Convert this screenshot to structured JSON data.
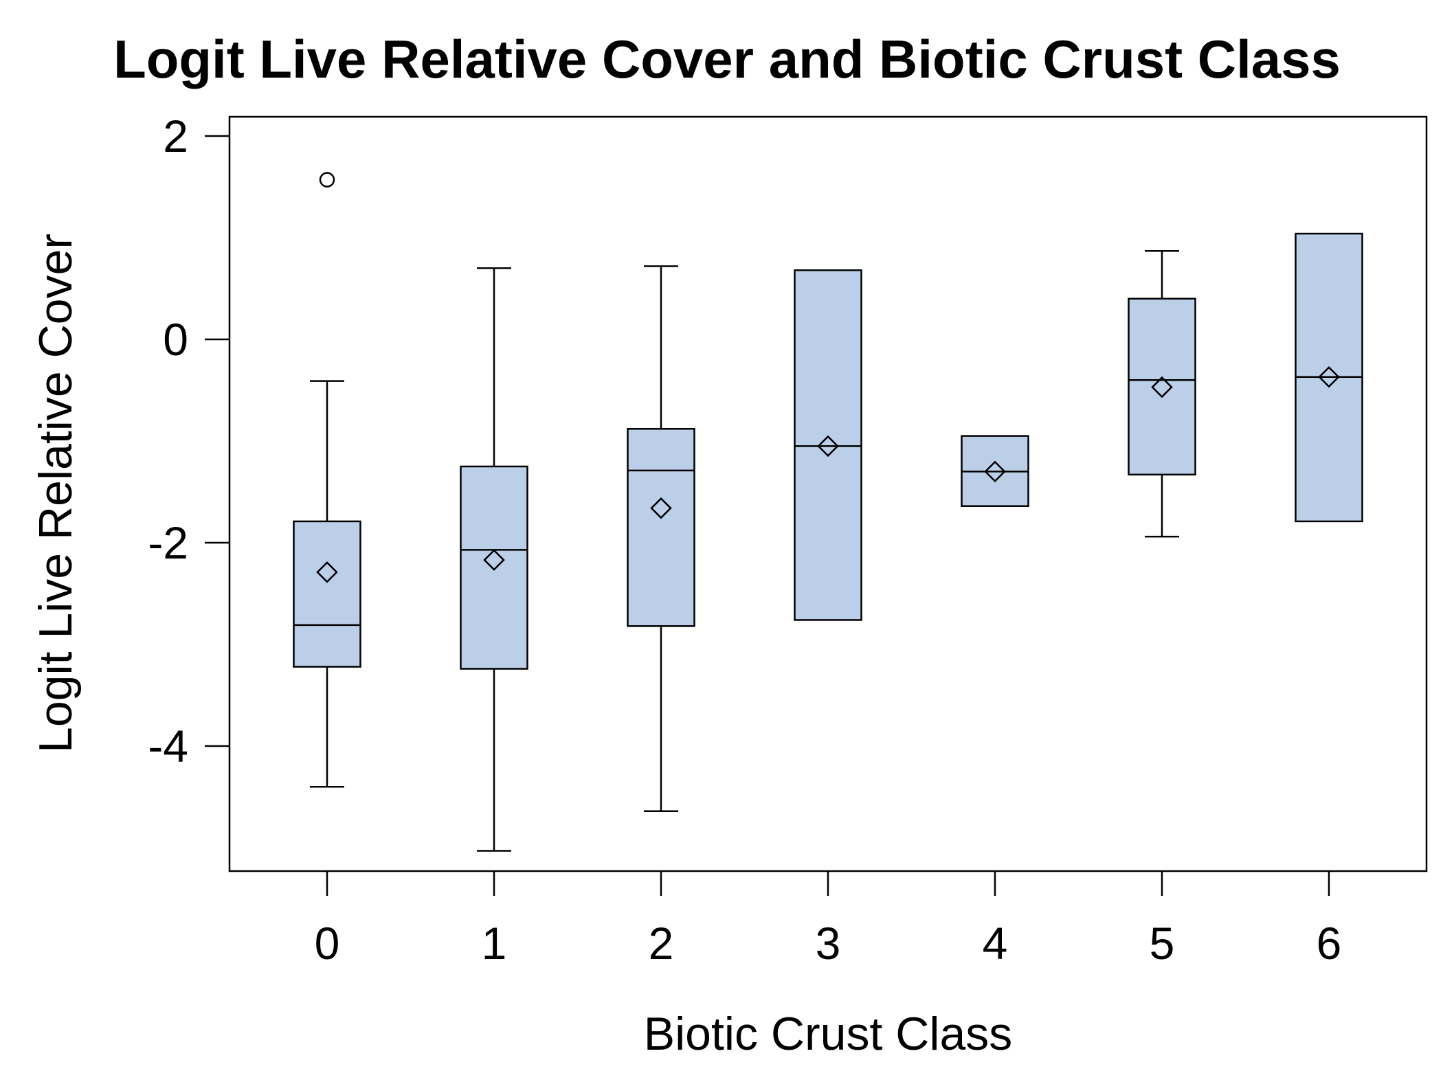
{
  "chart_data": {
    "type": "boxplot",
    "title": "Logit Live Relative Cover and Biotic Crust Class",
    "xlabel": "Biotic Crust Class",
    "ylabel": "Logit Live Relative Cover",
    "categories": [
      "0",
      "1",
      "2",
      "3",
      "4",
      "5",
      "6"
    ],
    "yticks": [
      "2",
      "0",
      "-2",
      "-4"
    ],
    "ylim": [
      -5.25,
      2.2
    ],
    "grid": false,
    "legend": "none",
    "box_fill": "#bbd0e8",
    "stroke": "#000000",
    "boxes": [
      {
        "category": "0",
        "whisker_low": -4.4,
        "q1": -3.22,
        "median": -2.81,
        "q3": -1.79,
        "whisker_high": -0.41,
        "mean": -2.29,
        "outliers": [
          1.57
        ]
      },
      {
        "category": "1",
        "whisker_low": -5.03,
        "q1": -3.24,
        "median": -2.07,
        "q3": -1.25,
        "whisker_high": 0.7,
        "mean": -2.17,
        "outliers": []
      },
      {
        "category": "2",
        "whisker_low": -4.64,
        "q1": -2.82,
        "median": -1.29,
        "q3": -0.88,
        "whisker_high": 0.72,
        "mean": -1.66,
        "outliers": []
      },
      {
        "category": "3",
        "whisker_low": -2.76,
        "q1": -2.76,
        "median": -1.05,
        "q3": 0.68,
        "whisker_high": 0.68,
        "mean": -1.05,
        "outliers": []
      },
      {
        "category": "4",
        "whisker_low": -1.64,
        "q1": -1.64,
        "median": -1.3,
        "q3": -0.95,
        "whisker_high": -0.95,
        "mean": -1.3,
        "outliers": []
      },
      {
        "category": "5",
        "whisker_low": -1.94,
        "q1": -1.33,
        "median": -0.4,
        "q3": 0.4,
        "whisker_high": 0.87,
        "mean": -0.47,
        "outliers": []
      },
      {
        "category": "6",
        "whisker_low": -1.79,
        "q1": -1.79,
        "median": -0.37,
        "q3": 1.04,
        "whisker_high": 1.04,
        "mean": -0.37,
        "outliers": []
      }
    ]
  }
}
